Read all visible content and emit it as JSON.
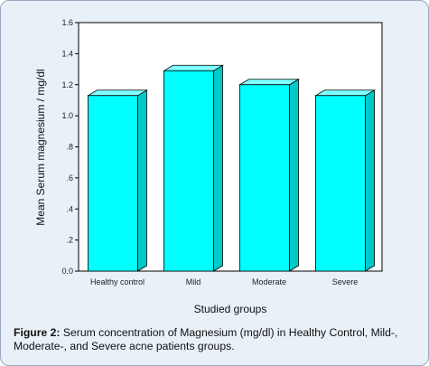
{
  "chart_data": {
    "type": "bar",
    "categories": [
      "Healthy control",
      "Mild",
      "Moderate",
      "Severe"
    ],
    "values": [
      1.13,
      1.29,
      1.2,
      1.13
    ],
    "xlabel": "Studied groups",
    "ylabel": "Mean Serum magnesium / mg/dl",
    "ylim": [
      0,
      1.6
    ],
    "yticks": [
      0,
      0.2,
      0.4,
      0.6,
      0.8,
      1.0,
      1.2,
      1.4,
      1.6
    ],
    "ytick_labels": [
      "0.0",
      ".2",
      ".4",
      ".6",
      ".8",
      "1.0",
      "1.2",
      "1.4",
      "1.6"
    ],
    "style": "3d-bar",
    "grid": false,
    "colors": {
      "bar_face": "#00ffff",
      "bar_side": "#00c8c8",
      "bar_top": "#7fffff",
      "plot_background": "#ffffff",
      "panel_background": "#e8f0f8"
    }
  },
  "caption": {
    "label": "Figure 2:",
    "text": " Serum concentration of Magnesium (mg/dl) in Healthy Control, Mild-, Moderate-, and Severe acne patients groups."
  }
}
